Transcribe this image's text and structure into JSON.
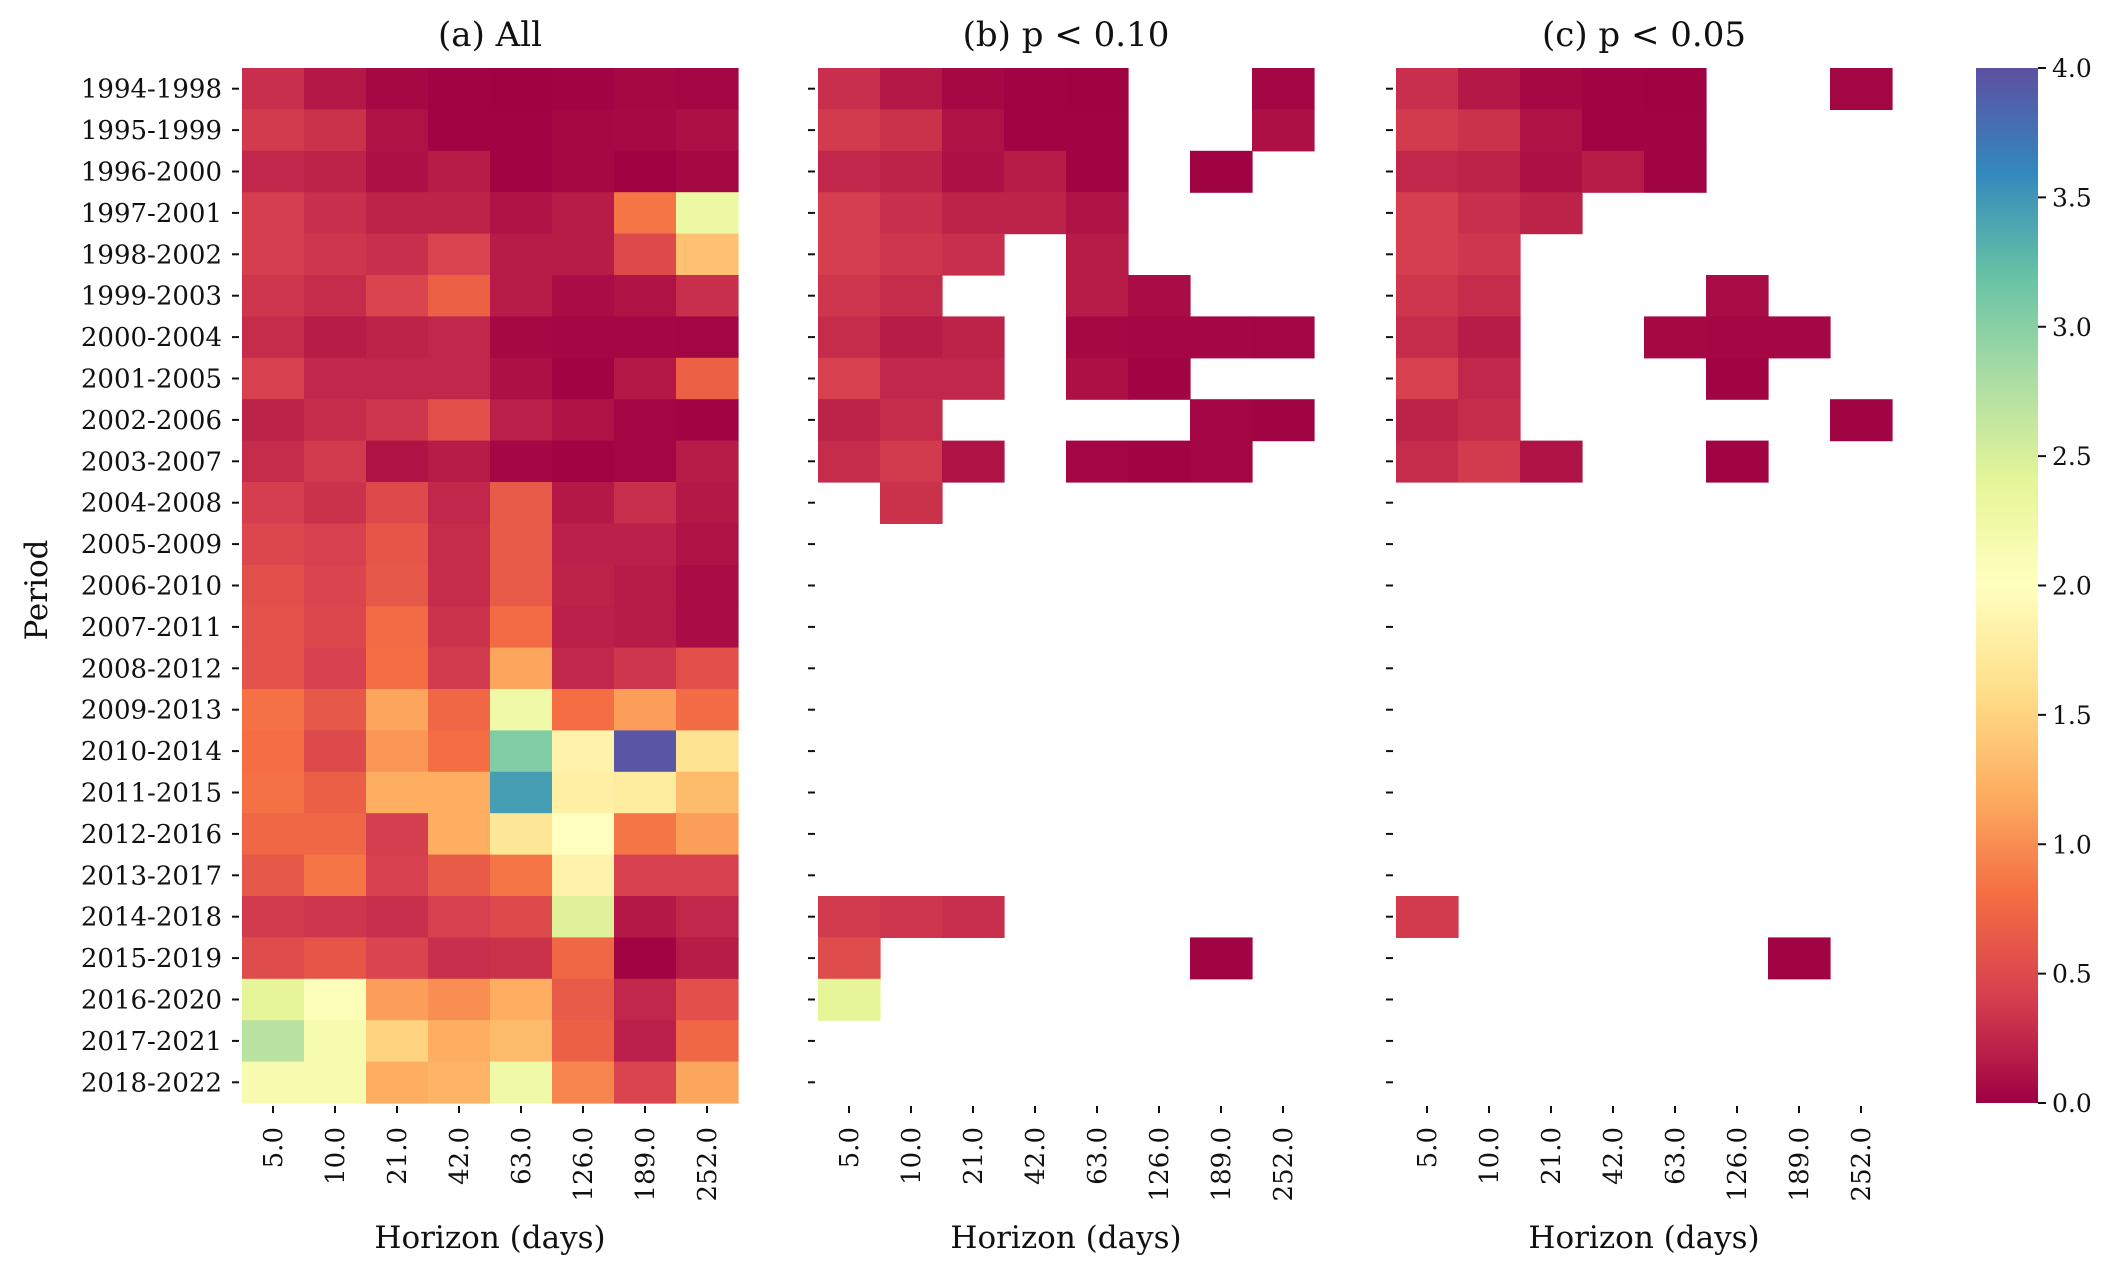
{
  "chart_data": {
    "type": "heatmap",
    "colormap": "Spectral",
    "colorbar": {
      "range": [
        0.0,
        4.0
      ],
      "ticks": [
        "0.0",
        "0.5",
        "1.0",
        "1.5",
        "2.0",
        "2.5",
        "3.0",
        "3.5",
        "4.0"
      ]
    },
    "ylabel": "Period",
    "xlabel": "Horizon (days)",
    "rows": [
      "1994-1998",
      "1995-1999",
      "1996-2000",
      "1997-2001",
      "1998-2002",
      "1999-2003",
      "2000-2004",
      "2001-2005",
      "2002-2006",
      "2003-2007",
      "2004-2008",
      "2005-2009",
      "2006-2010",
      "2007-2011",
      "2008-2012",
      "2009-2013",
      "2010-2014",
      "2011-2015",
      "2012-2016",
      "2013-2017",
      "2014-2018",
      "2015-2019",
      "2016-2020",
      "2017-2021",
      "2018-2022"
    ],
    "columns": [
      "5.0",
      "10.0",
      "21.0",
      "42.0",
      "63.0",
      "126.0",
      "189.0",
      "252.0"
    ],
    "panels": [
      {
        "title": "(a) All",
        "values": [
          [
            0.3,
            0.15,
            0.05,
            0.02,
            0.01,
            0.02,
            0.05,
            0.03
          ],
          [
            0.38,
            0.32,
            0.12,
            0.02,
            0.02,
            0.05,
            0.06,
            0.1
          ],
          [
            0.25,
            0.22,
            0.1,
            0.18,
            0.02,
            0.05,
            0.01,
            0.05
          ],
          [
            0.4,
            0.3,
            0.22,
            0.22,
            0.12,
            0.18,
            0.85,
            2.3
          ],
          [
            0.4,
            0.35,
            0.3,
            0.45,
            0.18,
            0.18,
            0.5,
            1.35
          ],
          [
            0.35,
            0.28,
            0.45,
            0.7,
            0.18,
            0.08,
            0.12,
            0.3
          ],
          [
            0.28,
            0.18,
            0.22,
            0.25,
            0.05,
            0.04,
            0.04,
            0.03
          ],
          [
            0.42,
            0.25,
            0.25,
            0.25,
            0.1,
            0.02,
            0.15,
            0.7
          ],
          [
            0.22,
            0.28,
            0.35,
            0.55,
            0.2,
            0.12,
            0.04,
            0.02
          ],
          [
            0.28,
            0.38,
            0.12,
            0.18,
            0.04,
            0.02,
            0.03,
            0.18
          ],
          [
            0.4,
            0.32,
            0.5,
            0.25,
            0.65,
            0.15,
            0.3,
            0.15
          ],
          [
            0.48,
            0.42,
            0.6,
            0.28,
            0.65,
            0.2,
            0.2,
            0.12
          ],
          [
            0.55,
            0.45,
            0.62,
            0.28,
            0.65,
            0.22,
            0.18,
            0.08
          ],
          [
            0.58,
            0.48,
            0.78,
            0.33,
            0.78,
            0.2,
            0.18,
            0.08
          ],
          [
            0.58,
            0.42,
            0.8,
            0.38,
            1.15,
            0.25,
            0.35,
            0.55
          ],
          [
            0.82,
            0.62,
            1.15,
            0.75,
            2.25,
            0.8,
            1.1,
            0.78
          ],
          [
            0.8,
            0.5,
            1.05,
            0.8,
            3.05,
            1.85,
            3.95,
            1.65
          ],
          [
            0.82,
            0.68,
            1.2,
            1.2,
            3.45,
            1.8,
            1.75,
            1.3
          ],
          [
            0.75,
            0.75,
            0.4,
            1.2,
            1.7,
            2.0,
            0.85,
            1.1
          ],
          [
            0.62,
            0.85,
            0.42,
            0.65,
            0.85,
            1.85,
            0.42,
            0.42
          ],
          [
            0.38,
            0.35,
            0.3,
            0.42,
            0.5,
            2.45,
            0.15,
            0.25
          ],
          [
            0.52,
            0.6,
            0.45,
            0.3,
            0.32,
            0.75,
            0.02,
            0.18
          ],
          [
            2.4,
            2.05,
            1.1,
            1.0,
            1.2,
            0.65,
            0.25,
            0.55
          ],
          [
            2.7,
            2.15,
            1.5,
            1.2,
            1.3,
            0.7,
            0.2,
            0.75
          ],
          [
            2.15,
            2.15,
            1.2,
            1.25,
            2.25,
            0.95,
            0.45,
            1.15
          ]
        ]
      },
      {
        "title": "(b) p < 0.10",
        "values": [
          [
            0.3,
            0.15,
            0.05,
            0.02,
            0.01,
            null,
            null,
            0.03
          ],
          [
            0.38,
            0.32,
            0.12,
            0.02,
            0.02,
            null,
            null,
            0.1
          ],
          [
            0.25,
            0.22,
            0.1,
            0.18,
            0.02,
            null,
            0.01,
            null
          ],
          [
            0.4,
            0.3,
            0.22,
            0.22,
            0.12,
            null,
            null,
            null
          ],
          [
            0.4,
            0.35,
            0.3,
            null,
            0.18,
            null,
            null,
            null
          ],
          [
            0.35,
            0.28,
            null,
            null,
            0.18,
            0.08,
            null,
            null
          ],
          [
            0.28,
            0.18,
            0.22,
            null,
            0.05,
            0.04,
            0.04,
            0.03
          ],
          [
            0.42,
            0.25,
            0.25,
            null,
            0.1,
            0.02,
            null,
            null
          ],
          [
            0.22,
            0.28,
            null,
            null,
            null,
            null,
            0.04,
            0.02
          ],
          [
            0.28,
            0.38,
            0.12,
            null,
            0.04,
            0.02,
            0.03,
            null
          ],
          [
            null,
            0.32,
            null,
            null,
            null,
            null,
            null,
            null
          ],
          [
            null,
            null,
            null,
            null,
            null,
            null,
            null,
            null
          ],
          [
            null,
            null,
            null,
            null,
            null,
            null,
            null,
            null
          ],
          [
            null,
            null,
            null,
            null,
            null,
            null,
            null,
            null
          ],
          [
            null,
            null,
            null,
            null,
            null,
            null,
            null,
            null
          ],
          [
            null,
            null,
            null,
            null,
            null,
            null,
            null,
            null
          ],
          [
            null,
            null,
            null,
            null,
            null,
            null,
            null,
            null
          ],
          [
            null,
            null,
            null,
            null,
            null,
            null,
            null,
            null
          ],
          [
            null,
            null,
            null,
            null,
            null,
            null,
            null,
            null
          ],
          [
            null,
            null,
            null,
            null,
            null,
            null,
            null,
            null
          ],
          [
            0.38,
            0.35,
            0.3,
            null,
            null,
            null,
            null,
            null
          ],
          [
            0.52,
            null,
            null,
            null,
            null,
            null,
            0.02,
            null
          ],
          [
            2.4,
            null,
            null,
            null,
            null,
            null,
            null,
            null
          ],
          [
            null,
            null,
            null,
            null,
            null,
            null,
            null,
            null
          ],
          [
            null,
            null,
            null,
            null,
            null,
            null,
            null,
            null
          ]
        ]
      },
      {
        "title": "(c) p < 0.05",
        "values": [
          [
            0.3,
            0.15,
            0.05,
            0.02,
            0.01,
            null,
            null,
            0.03
          ],
          [
            0.38,
            0.32,
            0.12,
            0.02,
            0.02,
            null,
            null,
            null
          ],
          [
            0.25,
            0.22,
            0.1,
            0.18,
            0.02,
            null,
            null,
            null
          ],
          [
            0.4,
            0.3,
            0.22,
            null,
            null,
            null,
            null,
            null
          ],
          [
            0.4,
            0.35,
            null,
            null,
            null,
            null,
            null,
            null
          ],
          [
            0.35,
            0.28,
            null,
            null,
            null,
            0.08,
            null,
            null
          ],
          [
            0.28,
            0.18,
            null,
            null,
            0.05,
            0.04,
            0.04,
            null
          ],
          [
            0.42,
            0.25,
            null,
            null,
            null,
            0.02,
            null,
            null
          ],
          [
            0.22,
            0.28,
            null,
            null,
            null,
            null,
            null,
            0.02
          ],
          [
            0.28,
            0.38,
            0.12,
            null,
            null,
            0.02,
            null,
            null
          ],
          [
            null,
            null,
            null,
            null,
            null,
            null,
            null,
            null
          ],
          [
            null,
            null,
            null,
            null,
            null,
            null,
            null,
            null
          ],
          [
            null,
            null,
            null,
            null,
            null,
            null,
            null,
            null
          ],
          [
            null,
            null,
            null,
            null,
            null,
            null,
            null,
            null
          ],
          [
            null,
            null,
            null,
            null,
            null,
            null,
            null,
            null
          ],
          [
            null,
            null,
            null,
            null,
            null,
            null,
            null,
            null
          ],
          [
            null,
            null,
            null,
            null,
            null,
            null,
            null,
            null
          ],
          [
            null,
            null,
            null,
            null,
            null,
            null,
            null,
            null
          ],
          [
            null,
            null,
            null,
            null,
            null,
            null,
            null,
            null
          ],
          [
            null,
            null,
            null,
            null,
            null,
            null,
            null,
            null
          ],
          [
            0.38,
            null,
            null,
            null,
            null,
            null,
            null,
            null
          ],
          [
            null,
            null,
            null,
            null,
            null,
            null,
            0.02,
            null
          ],
          [
            null,
            null,
            null,
            null,
            null,
            null,
            null,
            null
          ],
          [
            null,
            null,
            null,
            null,
            null,
            null,
            null,
            null
          ],
          [
            null,
            null,
            null,
            null,
            null,
            null,
            null,
            null
          ]
        ]
      }
    ]
  }
}
